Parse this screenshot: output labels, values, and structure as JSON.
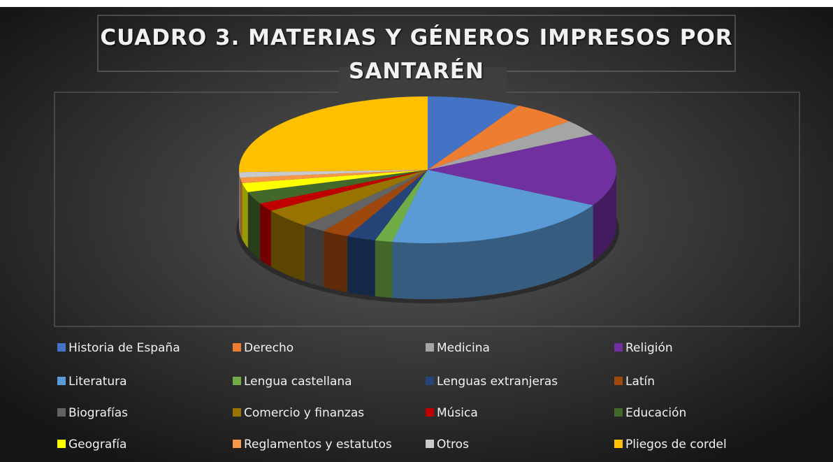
{
  "chart_data": {
    "type": "pie",
    "title": "CUADRO 3. MATERIAS Y GÉNEROS IMPRESOS POR SANTARÉN",
    "categories": [
      "Historia de España",
      "Derecho",
      "Medicina",
      "Religión",
      "Literatura",
      "Lengua castellana",
      "Lenguas extranjeras",
      "Latín",
      "Biografías",
      "Comercio y finanzas",
      "Música",
      "Educación",
      "Geografía",
      "Reglamentos y estatutos",
      "Otros",
      "Pliegos de cordel"
    ],
    "values": [
      8,
      5.5,
      3.5,
      16,
      20,
      1.5,
      2.5,
      2.3,
      2,
      4.3,
      1.8,
      2.7,
      2,
      1.2,
      1.2,
      25.5
    ],
    "colors": [
      "#4472c4",
      "#ed7d31",
      "#a5a5a5",
      "#7030a0",
      "#5b9bd5",
      "#70ad47",
      "#264478",
      "#9e480e",
      "#636363",
      "#997300",
      "#c00000",
      "#43682b",
      "#ffff00",
      "#f79646",
      "#c9c9c9",
      "#ffc000"
    ],
    "legend": "bottom"
  }
}
